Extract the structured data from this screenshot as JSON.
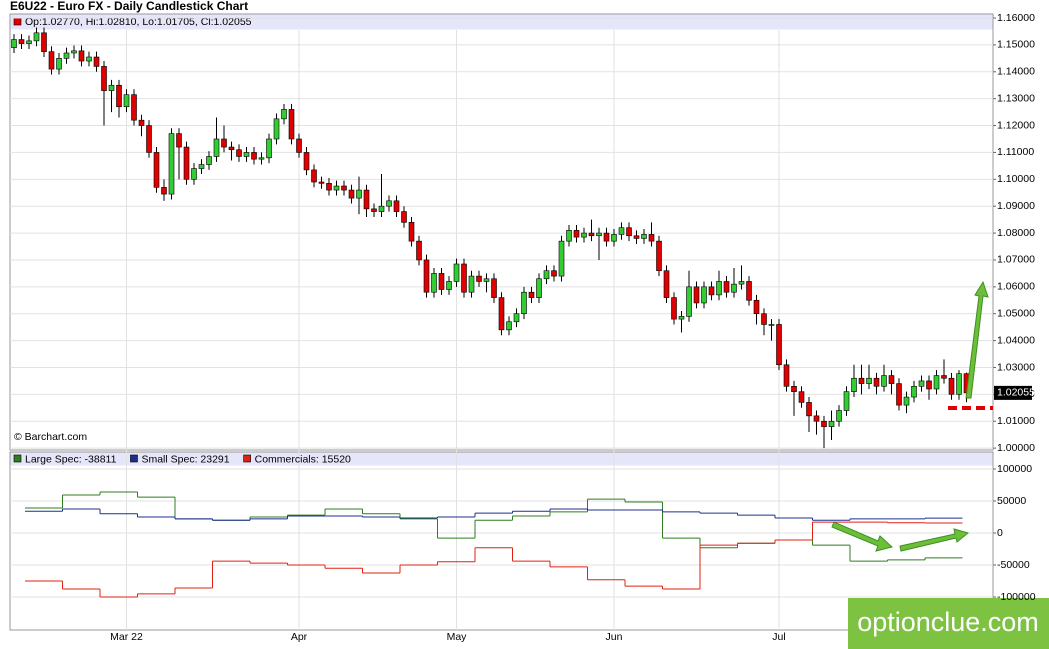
{
  "watermark": "optionclue.com",
  "chart_data": [
    {
      "type": "candlestick",
      "title": "E6U22 - Euro FX - Daily Candlestick Chart",
      "subtitle": "Op:1.02770, Hi:1.02810, Lo:1.01705, Cl:1.02055",
      "credit": "© Barchart.com",
      "up_color": "#33cc33",
      "down_color": "#e00000",
      "grid": true,
      "ylim": [
        0.9993,
        1.1615
      ],
      "yticks": [
        {
          "value": 1.16,
          "label": "1.16000"
        },
        {
          "value": 1.15,
          "label": "1.15000"
        },
        {
          "value": 1.14,
          "label": "1.14000"
        },
        {
          "value": 1.13,
          "label": "1.13000"
        },
        {
          "value": 1.12,
          "label": "1.12000"
        },
        {
          "value": 1.11,
          "label": "1.11000"
        },
        {
          "value": 1.1,
          "label": "1.10000"
        },
        {
          "value": 1.09,
          "label": "1.09000"
        },
        {
          "value": 1.08,
          "label": "1.08000"
        },
        {
          "value": 1.07,
          "label": "1.07000"
        },
        {
          "value": 1.06,
          "label": "1.06000"
        },
        {
          "value": 1.05,
          "label": "1.05000"
        },
        {
          "value": 1.04,
          "label": "1.04000"
        },
        {
          "value": 1.03,
          "label": "1.03000"
        },
        {
          "value": 1.02,
          "label": "1.02000"
        },
        {
          "value": 1.01,
          "label": "1.01000"
        },
        {
          "value": 1.0,
          "label": "1.00000"
        }
      ],
      "categories": [
        null,
        null,
        null,
        null,
        null,
        null,
        null,
        null,
        null,
        null,
        null,
        null,
        null,
        null,
        null,
        "Mar 22",
        null,
        null,
        null,
        null,
        null,
        null,
        null,
        null,
        null,
        null,
        null,
        null,
        null,
        null,
        null,
        null,
        null,
        null,
        null,
        null,
        null,
        null,
        "Apr",
        null,
        null,
        null,
        null,
        null,
        null,
        null,
        null,
        null,
        null,
        null,
        null,
        null,
        null,
        null,
        null,
        null,
        null,
        null,
        null,
        "May",
        null,
        null,
        null,
        null,
        null,
        null,
        null,
        null,
        null,
        null,
        null,
        null,
        null,
        null,
        null,
        null,
        null,
        null,
        null,
        null,
        "Jun",
        null,
        null,
        null,
        null,
        null,
        null,
        null,
        null,
        null,
        null,
        null,
        null,
        null,
        null,
        null,
        null,
        null,
        null,
        null,
        null,
        null,
        "Jul",
        null,
        null,
        null,
        null,
        null,
        null,
        null,
        null,
        null,
        null,
        null,
        null,
        null,
        null,
        null,
        null,
        null,
        null,
        null,
        null,
        null,
        null,
        null,
        null,
        null
      ],
      "open": [
        1.149,
        1.152,
        1.1505,
        1.1515,
        1.1545,
        1.1475,
        1.141,
        1.145,
        1.147,
        1.1478,
        1.144,
        1.1455,
        1.142,
        1.133,
        1.135,
        1.127,
        1.1315,
        1.122,
        1.12,
        1.11,
        1.097,
        1.0945,
        1.117,
        1.112,
        1.1,
        1.104,
        1.1055,
        1.1085,
        1.115,
        1.112,
        1.111,
        1.1085,
        1.11,
        1.1075,
        1.108,
        1.115,
        1.1225,
        1.126,
        1.115,
        1.11,
        1.1035,
        1.099,
        1.0985,
        1.096,
        1.0975,
        1.096,
        1.093,
        1.096,
        1.089,
        1.088,
        1.09,
        1.092,
        1.088,
        1.084,
        1.077,
        1.07,
        1.058,
        1.065,
        1.059,
        1.062,
        1.0685,
        1.058,
        1.064,
        1.062,
        1.063,
        1.056,
        1.044,
        1.047,
        1.05,
        1.058,
        1.056,
        1.063,
        1.066,
        1.064,
        1.077,
        1.081,
        1.0785,
        1.08,
        1.079,
        1.08,
        1.077,
        1.0795,
        1.082,
        1.079,
        1.078,
        1.0795,
        1.077,
        1.066,
        1.056,
        1.048,
        1.049,
        1.06,
        1.054,
        1.06,
        1.057,
        1.062,
        1.058,
        1.061,
        1.062,
        1.055,
        1.05,
        1.046,
        1.046,
        1.031,
        1.023,
        1.021,
        1.017,
        1.012,
        1.01,
        1.008,
        1.01,
        1.014,
        1.021,
        1.026,
        1.024,
        1.026,
        1.023,
        1.027,
        1.024,
        1.016,
        1.019,
        1.023,
        1.025,
        1.022,
        1.027,
        1.026,
        1.02,
        1.0277
      ],
      "high": [
        1.154,
        1.154,
        1.1535,
        1.1565,
        1.1565,
        1.1495,
        1.147,
        1.149,
        1.1498,
        1.1498,
        1.1475,
        1.1475,
        1.144,
        1.137,
        1.137,
        1.1335,
        1.1335,
        1.124,
        1.122,
        1.112,
        1.1,
        1.119,
        1.119,
        1.114,
        1.106,
        1.1075,
        1.1105,
        1.123,
        1.12,
        1.114,
        1.113,
        1.112,
        1.112,
        1.11,
        1.117,
        1.1245,
        1.128,
        1.128,
        1.117,
        1.112,
        1.1055,
        1.101,
        1.1005,
        1.0995,
        1.0995,
        1.098,
        1.101,
        1.098,
        1.091,
        1.102,
        1.094,
        1.094,
        1.09,
        1.086,
        1.079,
        1.072,
        1.067,
        1.067,
        1.064,
        1.0705,
        1.0705,
        1.066,
        1.066,
        1.065,
        1.065,
        1.058,
        1.049,
        1.052,
        1.06,
        1.06,
        1.065,
        1.068,
        1.068,
        1.079,
        1.083,
        1.083,
        1.082,
        1.085,
        1.082,
        1.082,
        1.0815,
        1.084,
        1.084,
        1.081,
        1.0815,
        1.084,
        1.079,
        1.068,
        1.058,
        1.051,
        1.066,
        1.062,
        1.062,
        1.062,
        1.066,
        1.064,
        1.067,
        1.068,
        1.064,
        1.057,
        1.052,
        1.048,
        1.048,
        1.033,
        1.025,
        1.023,
        1.019,
        1.014,
        1.012,
        1.014,
        1.016,
        1.023,
        1.031,
        1.031,
        1.031,
        1.028,
        1.031,
        1.029,
        1.026,
        1.021,
        1.025,
        1.027,
        1.027,
        1.029,
        1.033,
        1.028,
        1.029,
        1.0281
      ],
      "low": [
        1.147,
        1.1485,
        1.1485,
        1.1495,
        1.1455,
        1.139,
        1.139,
        1.143,
        1.145,
        1.142,
        1.142,
        1.14,
        1.12,
        1.125,
        1.123,
        1.125,
        1.12,
        1.116,
        1.108,
        1.095,
        1.092,
        1.0925,
        1.1,
        1.098,
        1.098,
        1.102,
        1.1035,
        1.1065,
        1.11,
        1.107,
        1.1065,
        1.1065,
        1.1055,
        1.1055,
        1.106,
        1.113,
        1.1205,
        1.113,
        1.108,
        1.1015,
        1.097,
        1.0965,
        1.094,
        1.094,
        1.094,
        1.091,
        1.087,
        1.086,
        1.086,
        1.086,
        1.088,
        1.086,
        1.082,
        1.075,
        1.068,
        1.056,
        1.056,
        1.057,
        1.057,
        1.06,
        1.056,
        1.056,
        1.06,
        1.058,
        1.054,
        1.042,
        1.042,
        1.045,
        1.048,
        1.054,
        1.054,
        1.061,
        1.062,
        1.062,
        1.075,
        1.0765,
        1.0765,
        1.077,
        1.07,
        1.075,
        1.075,
        1.0775,
        1.077,
        1.076,
        1.076,
        1.075,
        1.064,
        1.054,
        1.046,
        1.043,
        1.047,
        1.052,
        1.052,
        1.055,
        1.055,
        1.056,
        1.056,
        1.059,
        1.053,
        1.046,
        1.042,
        1.04,
        1.029,
        1.021,
        1.012,
        1.015,
        1.006,
        1.005,
        1.0,
        1.003,
        1.008,
        1.012,
        1.019,
        1.02,
        1.022,
        1.02,
        1.021,
        1.02,
        1.014,
        1.013,
        1.017,
        1.021,
        1.018,
        1.02,
        1.024,
        1.018,
        1.018,
        1.01705
      ],
      "close": [
        1.152,
        1.1505,
        1.1515,
        1.1545,
        1.1475,
        1.141,
        1.145,
        1.147,
        1.1478,
        1.144,
        1.1455,
        1.142,
        1.133,
        1.135,
        1.127,
        1.1315,
        1.122,
        1.12,
        1.11,
        1.097,
        1.0945,
        1.117,
        1.112,
        1.1,
        1.104,
        1.1055,
        1.1085,
        1.115,
        1.112,
        1.111,
        1.1085,
        1.11,
        1.1075,
        1.108,
        1.115,
        1.1225,
        1.126,
        1.115,
        1.11,
        1.1035,
        1.099,
        1.0985,
        1.096,
        1.0975,
        1.096,
        1.093,
        1.096,
        1.089,
        1.088,
        1.09,
        1.092,
        1.088,
        1.084,
        1.077,
        1.07,
        1.058,
        1.065,
        1.059,
        1.062,
        1.0685,
        1.058,
        1.064,
        1.062,
        1.063,
        1.056,
        1.044,
        1.047,
        1.05,
        1.058,
        1.056,
        1.063,
        1.066,
        1.064,
        1.077,
        1.081,
        1.0785,
        1.08,
        1.079,
        1.08,
        1.077,
        1.0795,
        1.082,
        1.079,
        1.078,
        1.0795,
        1.077,
        1.066,
        1.056,
        1.048,
        1.049,
        1.06,
        1.054,
        1.06,
        1.057,
        1.062,
        1.058,
        1.061,
        1.062,
        1.055,
        1.05,
        1.046,
        1.046,
        1.031,
        1.023,
        1.021,
        1.017,
        1.012,
        1.01,
        1.008,
        1.01,
        1.014,
        1.021,
        1.026,
        1.024,
        1.026,
        1.023,
        1.027,
        1.024,
        1.016,
        1.019,
        1.023,
        1.025,
        1.022,
        1.027,
        1.026,
        1.02,
        1.0277,
        1.02055
      ]
    },
    {
      "type": "step",
      "ylim": [
        -151500,
        106200
      ],
      "yticks": [
        100000,
        50000,
        0,
        -50000,
        -100000
      ],
      "grid": true,
      "categories": [
        null,
        null,
        null,
        null,
        null,
        null,
        null,
        null,
        null,
        null,
        null,
        null,
        null,
        null,
        null,
        null,
        null,
        null,
        null,
        null,
        null,
        null,
        null,
        null,
        null
      ],
      "series": [
        {
          "name": "Large Spec: -38811",
          "color": "#2e7d1e",
          "values": [
            39000,
            59400,
            64000,
            56000,
            22000,
            20000,
            25000,
            28000,
            37500,
            30000,
            22000,
            -8000,
            20000,
            26500,
            33000,
            53000,
            48500,
            -8000,
            -23000,
            -16000,
            -11000,
            -19000,
            -44000,
            -42000,
            -38811
          ]
        },
        {
          "name": "Small Spec: 23291",
          "color": "#1f2f8f",
          "values": [
            34000,
            37500,
            30000,
            25000,
            22000,
            20000,
            22000,
            26500,
            26500,
            25000,
            23500,
            25000,
            31000,
            34000,
            37500,
            36000,
            36000,
            33000,
            31000,
            28000,
            23500,
            20000,
            22000,
            22000,
            23291
          ]
        },
        {
          "name": "Commercials: 15520",
          "color": "#e02010",
          "values": [
            -75000,
            -87500,
            -100000,
            -95000,
            -86000,
            -44000,
            -47000,
            -50000,
            -55000,
            -62500,
            -50000,
            -45000,
            -23000,
            -44000,
            -53000,
            -73000,
            -83000,
            -87500,
            -19000,
            -16000,
            -11000,
            17000,
            17000,
            16000,
            15520
          ]
        }
      ]
    }
  ]
}
